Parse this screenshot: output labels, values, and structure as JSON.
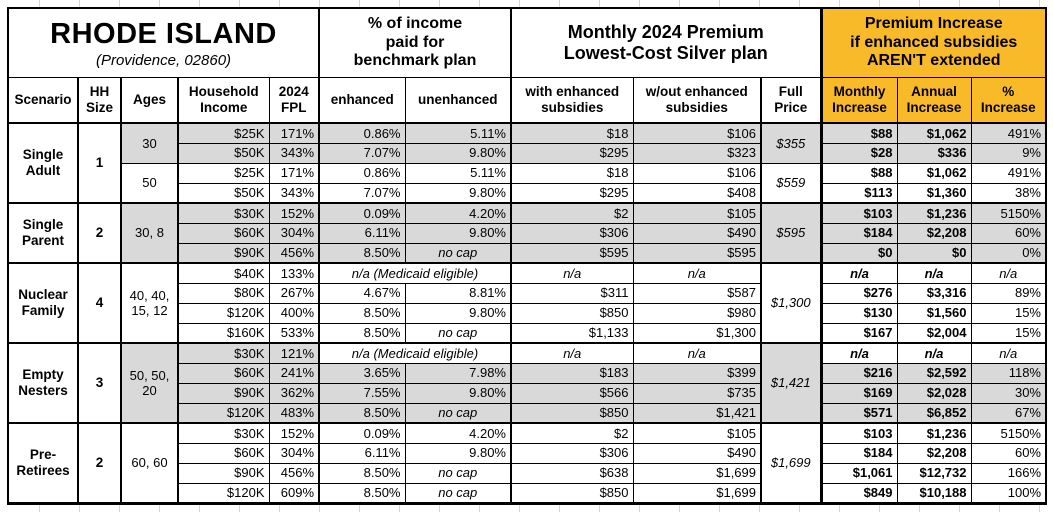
{
  "title": {
    "state": "RHODE ISLAND",
    "location": "(Providence, 02860)",
    "pct_income_header": "% of income\npaid for\nbenchmark plan",
    "premium_header": "Monthly 2024 Premium\nLowest-Cost Silver plan",
    "increase_header": "Premium Increase\nif enhanced subsidies\nAREN'T extended"
  },
  "columns": [
    {
      "key": "scenario",
      "label": "Scenario"
    },
    {
      "key": "hh_size",
      "label": "HH\nSize"
    },
    {
      "key": "ages",
      "label": "Ages"
    },
    {
      "key": "income",
      "label": "Household\nIncome"
    },
    {
      "key": "fpl",
      "label": "2024\nFPL"
    },
    {
      "key": "enhanced",
      "label": "enhanced"
    },
    {
      "key": "unenhanced",
      "label": "unenhanced"
    },
    {
      "key": "with_sub",
      "label": "with enhanced\nsubsidies"
    },
    {
      "key": "without_sub",
      "label": "w/out enhanced\nsubsidies"
    },
    {
      "key": "full_price",
      "label": "Full\nPrice"
    },
    {
      "key": "monthly_inc",
      "label": "Monthly\nIncrease"
    },
    {
      "key": "annual_inc",
      "label": "Annual\nIncrease"
    },
    {
      "key": "pct_inc",
      "label": "%\nIncrease"
    }
  ],
  "colors": {
    "accent_orange": "#F9BA29",
    "shade_gray": "#D9D9D9",
    "border": "#000000"
  },
  "groups": [
    {
      "scenario": "Single Adult",
      "hh_size": "1",
      "age_groups": [
        {
          "ages": "30",
          "shaded": true,
          "full_price": "$355",
          "rows": [
            {
              "income": "$25K",
              "fpl": "171%",
              "enhanced": "0.86%",
              "unenhanced": "5.11%",
              "with_sub": "$18",
              "without_sub": "$106",
              "monthly": "$88",
              "annual": "$1,062",
              "pct": "491%"
            },
            {
              "income": "$50K",
              "fpl": "343%",
              "enhanced": "7.07%",
              "unenhanced": "9.80%",
              "with_sub": "$295",
              "without_sub": "$323",
              "monthly": "$28",
              "annual": "$336",
              "pct": "9%"
            }
          ]
        },
        {
          "ages": "50",
          "shaded": false,
          "full_price": "$559",
          "rows": [
            {
              "income": "$25K",
              "fpl": "171%",
              "enhanced": "0.86%",
              "unenhanced": "5.11%",
              "with_sub": "$18",
              "without_sub": "$106",
              "monthly": "$88",
              "annual": "$1,062",
              "pct": "491%"
            },
            {
              "income": "$50K",
              "fpl": "343%",
              "enhanced": "7.07%",
              "unenhanced": "9.80%",
              "with_sub": "$295",
              "without_sub": "$408",
              "monthly": "$113",
              "annual": "$1,360",
              "pct": "38%"
            }
          ]
        }
      ]
    },
    {
      "scenario": "Single Parent",
      "hh_size": "2",
      "age_groups": [
        {
          "ages": "30, 8",
          "shaded": true,
          "full_price": "$595",
          "rows": [
            {
              "income": "$30K",
              "fpl": "152%",
              "enhanced": "0.09%",
              "unenhanced": "4.20%",
              "with_sub": "$2",
              "without_sub": "$105",
              "monthly": "$103",
              "annual": "$1,236",
              "pct": "5150%"
            },
            {
              "income": "$60K",
              "fpl": "304%",
              "enhanced": "6.11%",
              "unenhanced": "9.80%",
              "with_sub": "$306",
              "without_sub": "$490",
              "monthly": "$184",
              "annual": "$2,208",
              "pct": "60%"
            },
            {
              "income": "$90K",
              "fpl": "456%",
              "enhanced": "8.50%",
              "unenhanced": "no cap",
              "with_sub": "$595",
              "without_sub": "$595",
              "monthly": "$0",
              "annual": "$0",
              "pct": "0%"
            }
          ]
        }
      ]
    },
    {
      "scenario": "Nuclear Family",
      "hh_size": "4",
      "age_groups": [
        {
          "ages": "40, 40, 15, 12",
          "shaded": false,
          "full_price": "$1,300",
          "rows": [
            {
              "income": "$40K",
              "fpl": "133%",
              "medicaid": true,
              "note": "n/a (Medicaid eligible)",
              "with_sub": "n/a",
              "without_sub": "n/a",
              "monthly": "n/a",
              "annual": "n/a",
              "pct": "n/a"
            },
            {
              "income": "$80K",
              "fpl": "267%",
              "enhanced": "4.67%",
              "unenhanced": "8.81%",
              "with_sub": "$311",
              "without_sub": "$587",
              "monthly": "$276",
              "annual": "$3,316",
              "pct": "89%"
            },
            {
              "income": "$120K",
              "fpl": "400%",
              "enhanced": "8.50%",
              "unenhanced": "9.80%",
              "with_sub": "$850",
              "without_sub": "$980",
              "monthly": "$130",
              "annual": "$1,560",
              "pct": "15%"
            },
            {
              "income": "$160K",
              "fpl": "533%",
              "enhanced": "8.50%",
              "unenhanced": "no cap",
              "with_sub": "$1,133",
              "without_sub": "$1,300",
              "monthly": "$167",
              "annual": "$2,004",
              "pct": "15%"
            }
          ]
        }
      ]
    },
    {
      "scenario": "Empty Nesters",
      "hh_size": "3",
      "age_groups": [
        {
          "ages": "50, 50, 20",
          "shaded": true,
          "full_price": "$1,421",
          "rows": [
            {
              "income": "$30K",
              "fpl": "121%",
              "medicaid": true,
              "note": "n/a (Medicaid eligible)",
              "with_sub": "n/a",
              "without_sub": "n/a",
              "monthly": "n/a",
              "annual": "n/a",
              "pct": "n/a"
            },
            {
              "income": "$60K",
              "fpl": "241%",
              "enhanced": "3.65%",
              "unenhanced": "7.98%",
              "with_sub": "$183",
              "without_sub": "$399",
              "monthly": "$216",
              "annual": "$2,592",
              "pct": "118%"
            },
            {
              "income": "$90K",
              "fpl": "362%",
              "enhanced": "7.55%",
              "unenhanced": "9.80%",
              "with_sub": "$566",
              "without_sub": "$735",
              "monthly": "$169",
              "annual": "$2,028",
              "pct": "30%"
            },
            {
              "income": "$120K",
              "fpl": "483%",
              "enhanced": "8.50%",
              "unenhanced": "no cap",
              "with_sub": "$850",
              "without_sub": "$1,421",
              "monthly": "$571",
              "annual": "$6,852",
              "pct": "67%"
            }
          ]
        }
      ]
    },
    {
      "scenario": "Pre-Retirees",
      "hh_size": "2",
      "age_groups": [
        {
          "ages": "60, 60",
          "shaded": false,
          "full_price": "$1,699",
          "rows": [
            {
              "income": "$30K",
              "fpl": "152%",
              "enhanced": "0.09%",
              "unenhanced": "4.20%",
              "with_sub": "$2",
              "without_sub": "$105",
              "monthly": "$103",
              "annual": "$1,236",
              "pct": "5150%"
            },
            {
              "income": "$60K",
              "fpl": "304%",
              "enhanced": "6.11%",
              "unenhanced": "9.80%",
              "with_sub": "$306",
              "without_sub": "$490",
              "monthly": "$184",
              "annual": "$2,208",
              "pct": "60%"
            },
            {
              "income": "$90K",
              "fpl": "456%",
              "enhanced": "8.50%",
              "unenhanced": "no cap",
              "with_sub": "$638",
              "without_sub": "$1,699",
              "monthly": "$1,061",
              "annual": "$12,732",
              "pct": "166%"
            },
            {
              "income": "$120K",
              "fpl": "609%",
              "enhanced": "8.50%",
              "unenhanced": "no cap",
              "with_sub": "$850",
              "without_sub": "$1,699",
              "monthly": "$849",
              "annual": "$10,188",
              "pct": "100%"
            }
          ]
        }
      ]
    }
  ]
}
